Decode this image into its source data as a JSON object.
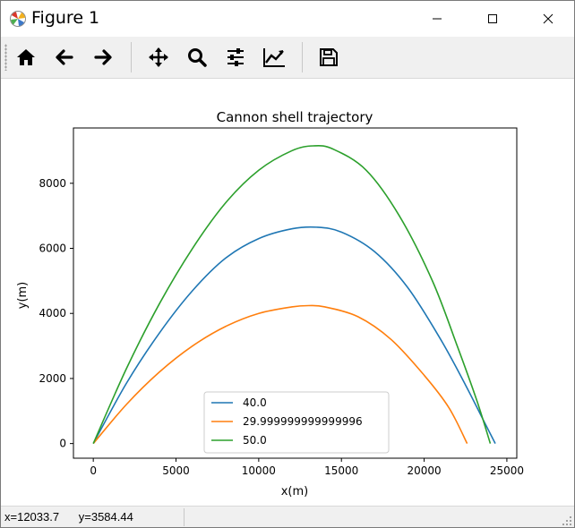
{
  "window": {
    "title": "Figure 1",
    "icons": [
      "app-icon",
      "minimize-icon",
      "maximize-icon",
      "close-icon"
    ]
  },
  "toolbar": {
    "buttons": [
      {
        "name": "home-button",
        "icon": "home-icon"
      },
      {
        "name": "back-button",
        "icon": "arrow-left-icon"
      },
      {
        "name": "forward-button",
        "icon": "arrow-right-icon"
      },
      {
        "name": "pan-button",
        "icon": "move-icon"
      },
      {
        "name": "zoom-button",
        "icon": "magnifier-icon"
      },
      {
        "name": "configure-subplots-button",
        "icon": "sliders-icon"
      },
      {
        "name": "edit-axis-button",
        "icon": "line-chart-icon"
      },
      {
        "name": "save-button",
        "icon": "floppy-disk-icon"
      }
    ]
  },
  "status": {
    "coords": "x=12033.7      y=3584.44"
  },
  "chart_data": {
    "type": "line",
    "title": "Cannon shell trajectory",
    "xlabel": "x(m)",
    "ylabel": "y(m)",
    "xlim": [
      -1200,
      25600
    ],
    "ylim": [
      -450,
      9700
    ],
    "xticks": [
      0,
      5000,
      10000,
      15000,
      20000,
      25000
    ],
    "xtick_labels": [
      "0",
      "5000",
      "10000",
      "15000",
      "20000",
      "25000"
    ],
    "yticks": [
      0,
      2000,
      4000,
      6000,
      8000
    ],
    "ytick_labels": [
      "0",
      "2000",
      "4000",
      "6000",
      "8000"
    ],
    "grid": false,
    "legend_position": "lower center",
    "series": [
      {
        "name": "40.0",
        "color": "#1f77b4",
        "x": [
          0,
          2000,
          4000,
          6000,
          8000,
          10000,
          12000,
          13500,
          15000,
          17000,
          19000,
          21000,
          22500,
          23500,
          24300
        ],
        "y": [
          0,
          1850,
          3400,
          4700,
          5700,
          6300,
          6600,
          6650,
          6500,
          5900,
          4800,
          3200,
          1800,
          800,
          0
        ]
      },
      {
        "name": "29.999999999999996",
        "color": "#ff7f0e",
        "x": [
          0,
          2000,
          4000,
          6000,
          8000,
          10000,
          12000,
          13000,
          14000,
          16000,
          18000,
          20000,
          21500,
          22600
        ],
        "y": [
          0,
          1200,
          2200,
          3000,
          3600,
          4000,
          4200,
          4240,
          4200,
          3900,
          3200,
          2100,
          1100,
          0
        ]
      },
      {
        "name": "50.0",
        "color": "#2ca02c",
        "x": [
          0,
          2000,
          4000,
          6000,
          8000,
          10000,
          12000,
          13300,
          14500,
          16500,
          18500,
          20500,
          22000,
          23200,
          24000
        ],
        "y": [
          0,
          2300,
          4300,
          6000,
          7400,
          8400,
          9000,
          9150,
          9050,
          8400,
          7000,
          5000,
          3000,
          1300,
          0
        ]
      }
    ]
  }
}
